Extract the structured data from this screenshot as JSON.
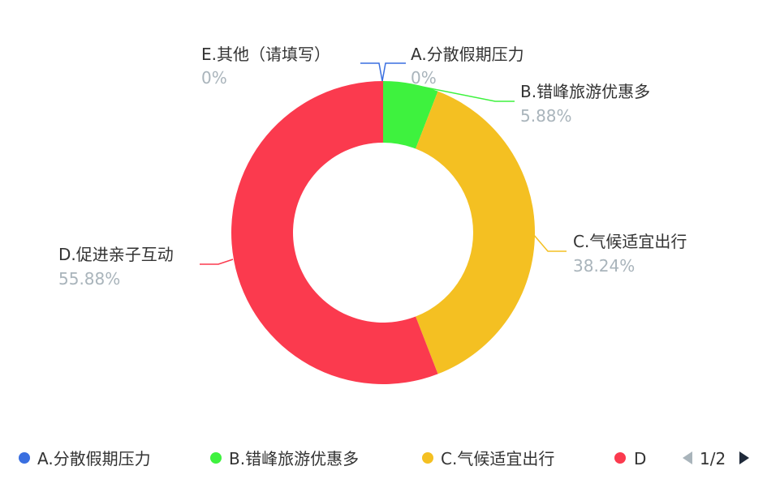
{
  "chart_data": {
    "type": "pie",
    "variant": "donut",
    "title": "",
    "categories": [
      "A.分散假期压力",
      "B.错峰旅游优惠多",
      "C.气候适宜出行",
      "D.促进亲子互动",
      "E.其他（请填写）"
    ],
    "values": [
      0,
      5.88,
      38.24,
      55.88,
      0
    ],
    "percent_labels": [
      "0%",
      "5.88%",
      "38.24%",
      "55.88%",
      "0%"
    ],
    "colors": [
      "#3a6fe0",
      "#3ef23e",
      "#f4c022",
      "#fb3a4e",
      "#3a6fe0"
    ],
    "legend": {
      "position": "bottom",
      "visible_items": [
        "A.分散假期压力",
        "B.错峰旅游优惠多",
        "C.气候适宜出行",
        "D"
      ],
      "page": "1/2"
    }
  }
}
